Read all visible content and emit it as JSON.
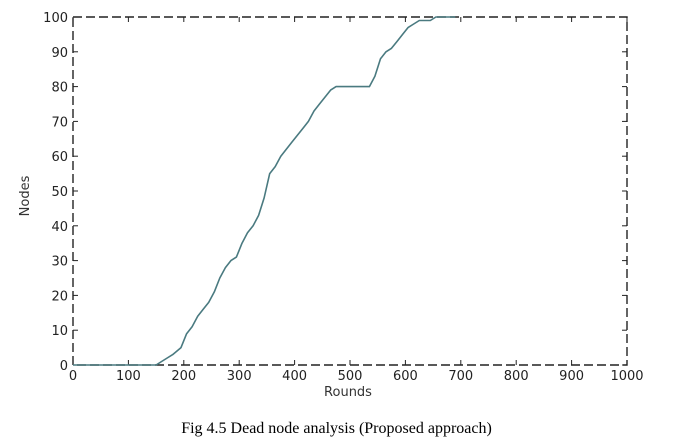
{
  "figure": {
    "caption": "Fig 4.5 Dead node analysis (Proposed approach)"
  },
  "chart_data": {
    "type": "line",
    "title": "",
    "xlabel": "Rounds",
    "ylabel": "Nodes",
    "xlim": [
      0,
      1000
    ],
    "ylim": [
      0,
      100
    ],
    "xticks": [
      0,
      100,
      200,
      300,
      400,
      500,
      600,
      700,
      800,
      900,
      1000
    ],
    "yticks": [
      0,
      10,
      20,
      30,
      40,
      50,
      60,
      70,
      80,
      90,
      100
    ],
    "xtick_labels": [
      "0",
      "100",
      "200",
      "300",
      "400",
      "500",
      "600",
      "700",
      "800",
      "900",
      "1000"
    ],
    "ytick_labels": [
      "0",
      "10",
      "20",
      "30",
      "40",
      "50",
      "60",
      "70",
      "80",
      "90",
      "100"
    ],
    "grid": false,
    "line_color": "#4a7a80",
    "series": [
      {
        "x": [
          0,
          150,
          160,
          170,
          180,
          195,
          205,
          215,
          225,
          235,
          245,
          255,
          265,
          275,
          285,
          295,
          305,
          315,
          325,
          335,
          345,
          355,
          365,
          375,
          385,
          395,
          405,
          415,
          425,
          435,
          445,
          455,
          465,
          475,
          485,
          495,
          505,
          515,
          525,
          535,
          545,
          555,
          565,
          575,
          585,
          595,
          605,
          615,
          625,
          635,
          645,
          655,
          665,
          675,
          690
        ],
        "y": [
          0,
          0,
          1,
          2,
          3,
          5,
          9,
          11,
          14,
          16,
          18,
          21,
          25,
          28,
          30,
          31,
          35,
          38,
          40,
          43,
          48,
          55,
          57,
          60,
          62,
          64,
          66,
          68,
          70,
          73,
          75,
          77,
          79,
          80,
          80,
          80,
          80,
          80,
          80,
          80,
          83,
          88,
          90,
          91,
          93,
          95,
          97,
          98,
          99,
          99,
          99,
          100,
          100,
          100,
          100
        ]
      }
    ]
  }
}
